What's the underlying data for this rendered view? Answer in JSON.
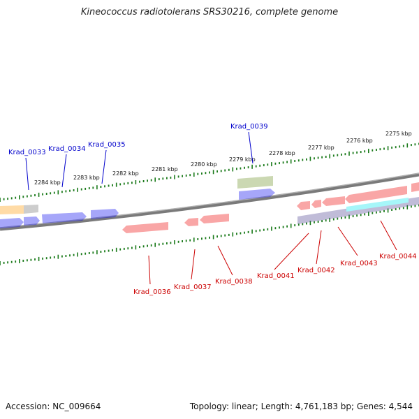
{
  "title": "Kineococcus radiotolerans SRS30216, complete genome",
  "footer": {
    "accession": "Accession: NC_009664",
    "summary": "Topology: linear; Length: 4,761,183 bp; Genes: 4,544"
  },
  "kbp_labels": [
    "2284 kbp",
    "2283 kbp",
    "2282 kbp",
    "2281 kbp",
    "2280 kbp",
    "2279 kbp",
    "2278 kbp",
    "2277 kbp",
    "2276 kbp",
    "2275 kbp"
  ],
  "genes_above": [
    "Krad_0033",
    "Krad_0034",
    "Krad_0035",
    "Krad_0039"
  ],
  "genes_below": [
    "Krad_0036",
    "Krad_0037",
    "Krad_0038",
    "Krad_0041",
    "Krad_0042",
    "Krad_0043",
    "Krad_0044"
  ],
  "colors": {
    "forward_label": "#0000cc",
    "reverse_label": "#cc0000",
    "backbone": "#808080",
    "tick": "#1a7a1a",
    "blue_gene": "#0000ee",
    "red_gene": "#ee0000",
    "green_gene": "#6b8e23",
    "orange_gene": "#ff9900",
    "purple_gene": "#4b3f8f",
    "cyan_gene": "#00e5ee",
    "grey_gene": "#6e6e6e"
  }
}
